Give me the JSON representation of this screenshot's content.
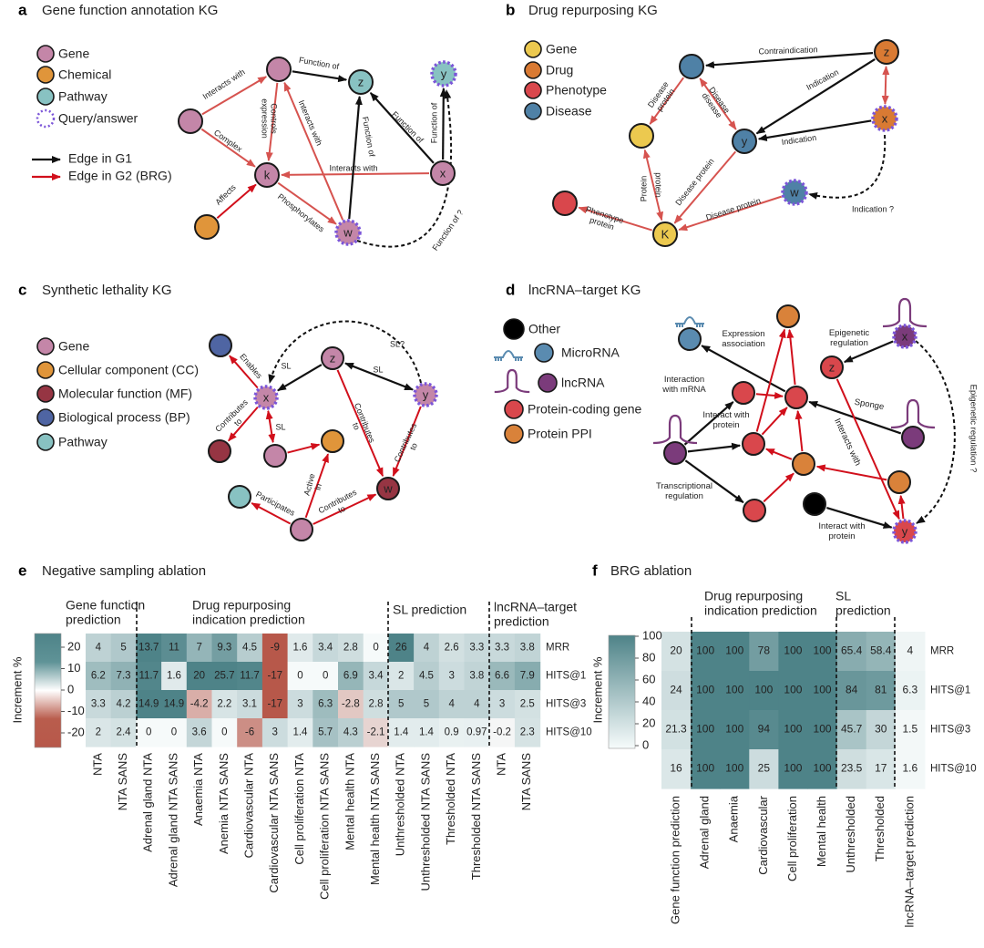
{
  "colors": {
    "teal": "#4e8388",
    "red": "#b7584a",
    "query": "#7b55d8",
    "g1_edge": "#111111",
    "g2_edge": "#d10f1b"
  },
  "panels": {
    "a": {
      "letter": "a",
      "title": "Gene function annotation KG",
      "legend": [
        "Gene",
        "Chemical",
        "Pathway",
        "Query/answer"
      ],
      "edge_legend": [
        "Edge in G1",
        "Edge in G2 (BRG)"
      ],
      "node_labels": {
        "z": "z",
        "y": "y",
        "k": "k",
        "x": "x",
        "w": "w"
      },
      "edge_labels": [
        [
          "Interacts with"
        ],
        [
          "Function of"
        ],
        [
          "Controls",
          "expression"
        ],
        [
          "Interacts with"
        ],
        [
          "Complex"
        ],
        [
          "Affects"
        ],
        [
          "Interacts with"
        ],
        [
          "Phosphorylates"
        ],
        [
          "Function of"
        ],
        [
          "Function of"
        ],
        [
          "Function of"
        ],
        [
          "Function of ?"
        ]
      ]
    },
    "b": {
      "letter": "b",
      "title": "Drug repurposing KG",
      "legend": [
        "Gene",
        "Drug",
        "Phenotype",
        "Disease"
      ],
      "node_labels": {
        "y": "y",
        "z": "z",
        "x": "x",
        "w": "w",
        "K": "K"
      },
      "edge_labels": [
        [
          "Contraindication"
        ],
        [
          "Indication"
        ],
        [
          "Indication"
        ],
        [
          "Disease",
          "protein"
        ],
        [
          "Disease",
          "disease"
        ],
        [
          "Protein"
        ],
        [
          "protein"
        ],
        [
          "Disease protein"
        ],
        [
          "Disease protein"
        ],
        [
          "Phenotype",
          "protein"
        ],
        [
          "Indication ?"
        ]
      ]
    },
    "c": {
      "letter": "c",
      "title": "Synthetic lethality KG",
      "legend": [
        "Gene",
        "Cellular component (CC)",
        "Molecular function (MF)",
        "Biological process (BP)",
        "Pathway"
      ],
      "node_labels": {
        "x": "x",
        "z": "z",
        "y": "y",
        "w": "w"
      },
      "edge_labels": [
        [
          "Enables"
        ],
        [
          "SL"
        ],
        [
          "SL"
        ],
        [
          "Contributes",
          "to"
        ],
        [
          "SL"
        ],
        [
          "Active",
          "in"
        ],
        [
          "Participates"
        ],
        [
          "Contributes",
          "to"
        ],
        [
          "Contributes",
          "to"
        ],
        [
          "Contributes",
          "to"
        ],
        [
          "SL?"
        ]
      ]
    },
    "d": {
      "letter": "d",
      "title": "lncRNA–target KG",
      "legend": [
        "Other",
        "MicroRNA",
        "lncRNA",
        "Protein-coding gene",
        "Protein PPI"
      ],
      "node_labels": {
        "z": "z",
        "x": "x",
        "y": "y"
      },
      "edge_labels": [
        [
          "Expression",
          "association"
        ],
        [
          "Epigenetic",
          "regulation"
        ],
        [
          "Interaction",
          "with mRNA"
        ],
        [
          "Interact with",
          "protein"
        ],
        [
          "Transcriptional",
          "regulation"
        ],
        [
          "Sponge"
        ],
        [
          "Interacts with"
        ],
        [
          "Interact with",
          "protein"
        ],
        [
          "Epigenetic regulation ?"
        ]
      ]
    },
    "e": {
      "letter": "e",
      "title": "Negative sampling ablation"
    },
    "f": {
      "letter": "f",
      "title": "BRG ablation"
    }
  },
  "chart_data": [
    {
      "type": "heatmap",
      "title": "Negative sampling ablation",
      "groups": [
        [
          "Gene function",
          "prediction"
        ],
        [
          "Drug repurposing",
          "indication prediction"
        ],
        [
          "SL prediction"
        ],
        [
          "lncRNA–target",
          "prediction"
        ]
      ],
      "rows": [
        "MRR",
        "HITS@1",
        "HITS@3",
        "HITS@10"
      ],
      "columns": [
        "NTA",
        "NTA SANS",
        "Adrenal gland NTA",
        "Adrenal gland NTA SANS",
        "Anaemia NTA",
        "Anemia NTA SANS",
        "Cardiovascular NTA",
        "Cardiovascular NTA SANS",
        "Cell proliferation NTA",
        "Cell proliferation NTA SANS",
        "Mental health NTA",
        "Mental health NTA SANS",
        "Unthresholded NTA",
        "Unthresholded NTA SANS",
        "Thresholded NTA",
        "Thresholded NTA SANS",
        "NTA",
        "NTA SANS"
      ],
      "values": [
        [
          4,
          5,
          13.7,
          11,
          7,
          9.3,
          4.5,
          -9,
          1.6,
          3.4,
          2.8,
          0,
          26,
          4,
          2.6,
          3.3,
          3.3,
          3.8
        ],
        [
          6.2,
          7.3,
          11.7,
          1.6,
          20,
          25.7,
          11.7,
          -17,
          0,
          0,
          6.9,
          3.4,
          2,
          4.5,
          3,
          3.8,
          6.6,
          7.9
        ],
        [
          3.3,
          4.2,
          14.9,
          14.9,
          -4.2,
          2.2,
          3.1,
          -17,
          3,
          6.3,
          -2.8,
          2.8,
          5,
          5,
          4,
          4,
          3,
          2.5
        ],
        [
          2,
          2.4,
          0,
          0,
          3.6,
          0,
          -6,
          3,
          1.4,
          5.7,
          4.3,
          -2.1,
          1.4,
          1.4,
          0.9,
          0.97,
          -0.2,
          2.3
        ]
      ],
      "colorbar": {
        "label": "Increment %",
        "ticks": [
          20,
          10,
          0,
          -10,
          -20
        ],
        "range": [
          -27,
          27
        ]
      }
    },
    {
      "type": "heatmap",
      "title": "BRG ablation",
      "groups": [
        [
          "Drug repurposing",
          "indication prediction"
        ],
        [
          "SL",
          "prediction"
        ]
      ],
      "rows": [
        "MRR",
        "HITS@1",
        "HITS@3",
        "HITS@10"
      ],
      "columns": [
        "Gene function prediction",
        "Adrenal gland",
        "Anaemia",
        "Cardiovascular",
        "Cell proliferation",
        "Mental health",
        "Unthresholded",
        "Thresholded",
        "lncRNA–target prediction"
      ],
      "values": [
        [
          20,
          100,
          100,
          78,
          100,
          100,
          65.4,
          58.4,
          4
        ],
        [
          24,
          100,
          100,
          100,
          100,
          100,
          84,
          81,
          6.3
        ],
        [
          21.3,
          100,
          100,
          94,
          100,
          100,
          45.7,
          30,
          1.5
        ],
        [
          16,
          100,
          100,
          25,
          100,
          100,
          23.5,
          17,
          1.6
        ]
      ],
      "colorbar": {
        "label": "Increment %",
        "ticks": [
          100,
          80,
          60,
          40,
          20,
          0
        ],
        "range": [
          0,
          100
        ]
      }
    }
  ]
}
